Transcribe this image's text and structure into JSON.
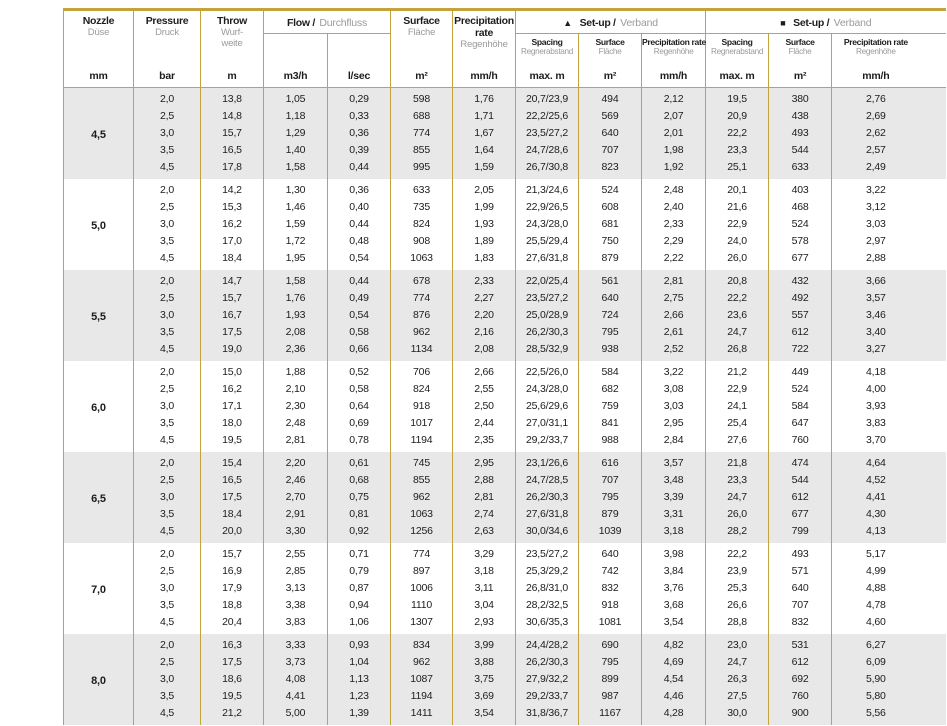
{
  "page": {
    "background": "#ffffff"
  },
  "table": {
    "colors": {
      "gold": "#c5a33c",
      "shaded_row_bg": "#e8e8e8",
      "text": "#1d1d1b",
      "muted_text": "#9b9a98"
    },
    "header": {
      "nozzle": {
        "en": "Nozzle",
        "de": "Düse"
      },
      "pressure": {
        "en": "Pressure",
        "de": "Druck"
      },
      "throw": {
        "en": "Throw",
        "de": "Wurf-\nweite"
      },
      "flow": {
        "en": "Flow /",
        "de": "Durchfluss"
      },
      "surface": {
        "en": "Surface",
        "de": "Fläche"
      },
      "precipitation": {
        "en": "Precipitation rate",
        "de": "Regenhöhe"
      },
      "setup_triangle": {
        "icon": "▲",
        "en": "Set-up /",
        "de": "Verband"
      },
      "setup_square": {
        "icon": "■",
        "en": "Set-up /",
        "de": "Verband"
      },
      "sub": [
        {
          "en": "Spacing",
          "de": "Regnerabstand"
        },
        {
          "en": "Surface",
          "de": "Fläche"
        },
        {
          "en": "Precipitation rate",
          "de": "Regenhöhe"
        }
      ],
      "units": [
        "mm",
        "bar",
        "m",
        "m3/h",
        "l/sec",
        "m²",
        "mm/h",
        "max. m",
        "m²",
        "mm/h",
        "max. m",
        "m²",
        "mm/h"
      ]
    },
    "groups": [
      {
        "nozzle": "4,5",
        "rows": [
          [
            "2,0",
            "13,8",
            "1,05",
            "0,29",
            "598",
            "1,76",
            "20,7/23,9",
            "494",
            "2,12",
            "19,5",
            "380",
            "2,76"
          ],
          [
            "2,5",
            "14,8",
            "1,18",
            "0,33",
            "688",
            "1,71",
            "22,2/25,6",
            "569",
            "2,07",
            "20,9",
            "438",
            "2,69"
          ],
          [
            "3,0",
            "15,7",
            "1,29",
            "0,36",
            "774",
            "1,67",
            "23,5/27,2",
            "640",
            "2,01",
            "22,2",
            "493",
            "2,62"
          ],
          [
            "3,5",
            "16,5",
            "1,40",
            "0,39",
            "855",
            "1,64",
            "24,7/28,6",
            "707",
            "1,98",
            "23,3",
            "544",
            "2,57"
          ],
          [
            "4,5",
            "17,8",
            "1,58",
            "0,44",
            "995",
            "1,59",
            "26,7/30,8",
            "823",
            "1,92",
            "25,1",
            "633",
            "2,49"
          ]
        ]
      },
      {
        "nozzle": "5,0",
        "rows": [
          [
            "2,0",
            "14,2",
            "1,30",
            "0,36",
            "633",
            "2,05",
            "21,3/24,6",
            "524",
            "2,48",
            "20,1",
            "403",
            "3,22"
          ],
          [
            "2,5",
            "15,3",
            "1,46",
            "0,40",
            "735",
            "1,99",
            "22,9/26,5",
            "608",
            "2,40",
            "21,6",
            "468",
            "3,12"
          ],
          [
            "3,0",
            "16,2",
            "1,59",
            "0,44",
            "824",
            "1,93",
            "24,3/28,0",
            "681",
            "2,33",
            "22,9",
            "524",
            "3,03"
          ],
          [
            "3,5",
            "17,0",
            "1,72",
            "0,48",
            "908",
            "1,89",
            "25,5/29,4",
            "750",
            "2,29",
            "24,0",
            "578",
            "2,97"
          ],
          [
            "4,5",
            "18,4",
            "1,95",
            "0,54",
            "1063",
            "1,83",
            "27,6/31,8",
            "879",
            "2,22",
            "26,0",
            "677",
            "2,88"
          ]
        ]
      },
      {
        "nozzle": "5,5",
        "rows": [
          [
            "2,0",
            "14,7",
            "1,58",
            "0,44",
            "678",
            "2,33",
            "22,0/25,4",
            "561",
            "2,81",
            "20,8",
            "432",
            "3,66"
          ],
          [
            "2,5",
            "15,7",
            "1,76",
            "0,49",
            "774",
            "2,27",
            "23,5/27,2",
            "640",
            "2,75",
            "22,2",
            "492",
            "3,57"
          ],
          [
            "3,0",
            "16,7",
            "1,93",
            "0,54",
            "876",
            "2,20",
            "25,0/28,9",
            "724",
            "2,66",
            "23,6",
            "557",
            "3,46"
          ],
          [
            "3,5",
            "17,5",
            "2,08",
            "0,58",
            "962",
            "2,16",
            "26,2/30,3",
            "795",
            "2,61",
            "24,7",
            "612",
            "3,40"
          ],
          [
            "4,5",
            "19,0",
            "2,36",
            "0,66",
            "1134",
            "2,08",
            "28,5/32,9",
            "938",
            "2,52",
            "26,8",
            "722",
            "3,27"
          ]
        ]
      },
      {
        "nozzle": "6,0",
        "rows": [
          [
            "2,0",
            "15,0",
            "1,88",
            "0,52",
            "706",
            "2,66",
            "22,5/26,0",
            "584",
            "3,22",
            "21,2",
            "449",
            "4,18"
          ],
          [
            "2,5",
            "16,2",
            "2,10",
            "0,58",
            "824",
            "2,55",
            "24,3/28,0",
            "682",
            "3,08",
            "22,9",
            "524",
            "4,00"
          ],
          [
            "3,0",
            "17,1",
            "2,30",
            "0,64",
            "918",
            "2,50",
            "25,6/29,6",
            "759",
            "3,03",
            "24,1",
            "584",
            "3,93"
          ],
          [
            "3,5",
            "18,0",
            "2,48",
            "0,69",
            "1017",
            "2,44",
            "27,0/31,1",
            "841",
            "2,95",
            "25,4",
            "647",
            "3,83"
          ],
          [
            "4,5",
            "19,5",
            "2,81",
            "0,78",
            "1194",
            "2,35",
            "29,2/33,7",
            "988",
            "2,84",
            "27,6",
            "760",
            "3,70"
          ]
        ]
      },
      {
        "nozzle": "6,5",
        "rows": [
          [
            "2,0",
            "15,4",
            "2,20",
            "0,61",
            "745",
            "2,95",
            "23,1/26,6",
            "616",
            "3,57",
            "21,8",
            "474",
            "4,64"
          ],
          [
            "2,5",
            "16,5",
            "2,46",
            "0,68",
            "855",
            "2,88",
            "24,7/28,5",
            "707",
            "3,48",
            "23,3",
            "544",
            "4,52"
          ],
          [
            "3,0",
            "17,5",
            "2,70",
            "0,75",
            "962",
            "2,81",
            "26,2/30,3",
            "795",
            "3,39",
            "24,7",
            "612",
            "4,41"
          ],
          [
            "3,5",
            "18,4",
            "2,91",
            "0,81",
            "1063",
            "2,74",
            "27,6/31,8",
            "879",
            "3,31",
            "26,0",
            "677",
            "4,30"
          ],
          [
            "4,5",
            "20,0",
            "3,30",
            "0,92",
            "1256",
            "2,63",
            "30,0/34,6",
            "1039",
            "3,18",
            "28,2",
            "799",
            "4,13"
          ]
        ]
      },
      {
        "nozzle": "7,0",
        "rows": [
          [
            "2,0",
            "15,7",
            "2,55",
            "0,71",
            "774",
            "3,29",
            "23,5/27,2",
            "640",
            "3,98",
            "22,2",
            "493",
            "5,17"
          ],
          [
            "2,5",
            "16,9",
            "2,85",
            "0,79",
            "897",
            "3,18",
            "25,3/29,2",
            "742",
            "3,84",
            "23,9",
            "571",
            "4,99"
          ],
          [
            "3,0",
            "17,9",
            "3,13",
            "0,87",
            "1006",
            "3,11",
            "26,8/31,0",
            "832",
            "3,76",
            "25,3",
            "640",
            "4,88"
          ],
          [
            "3,5",
            "18,8",
            "3,38",
            "0,94",
            "1110",
            "3,04",
            "28,2/32,5",
            "918",
            "3,68",
            "26,6",
            "707",
            "4,78"
          ],
          [
            "4,5",
            "20,4",
            "3,83",
            "1,06",
            "1307",
            "2,93",
            "30,6/35,3",
            "1081",
            "3,54",
            "28,8",
            "832",
            "4,60"
          ]
        ]
      },
      {
        "nozzle": "8,0",
        "rows": [
          [
            "2,0",
            "16,3",
            "3,33",
            "0,93",
            "834",
            "3,99",
            "24,4/28,2",
            "690",
            "4,82",
            "23,0",
            "531",
            "6,27"
          ],
          [
            "2,5",
            "17,5",
            "3,73",
            "1,04",
            "962",
            "3,88",
            "26,2/30,3",
            "795",
            "4,69",
            "24,7",
            "612",
            "6,09"
          ],
          [
            "3,0",
            "18,6",
            "4,08",
            "1,13",
            "1087",
            "3,75",
            "27,9/32,2",
            "899",
            "4,54",
            "26,3",
            "692",
            "5,90"
          ],
          [
            "3,5",
            "19,5",
            "4,41",
            "1,23",
            "1194",
            "3,69",
            "29,2/33,7",
            "987",
            "4,46",
            "27,5",
            "760",
            "5,80"
          ],
          [
            "4,5",
            "21,2",
            "5,00",
            "1,39",
            "1411",
            "3,54",
            "31,8/36,7",
            "1167",
            "4,28",
            "30,0",
            "900",
            "5,56"
          ]
        ]
      }
    ]
  }
}
